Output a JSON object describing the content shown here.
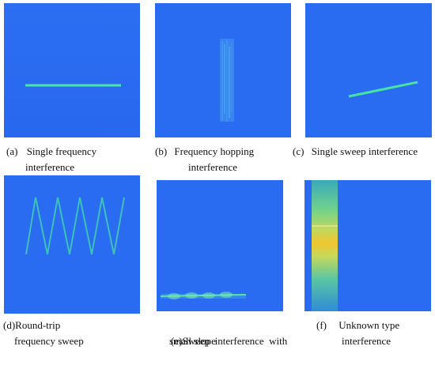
{
  "figure": {
    "panels": [
      {
        "tag": "(a)",
        "line1": "Single frequency",
        "line2": "interference"
      },
      {
        "tag": "(b)",
        "line1": "Frequency hopping",
        "line2": "interference"
      },
      {
        "tag": "(c)",
        "line1": "Single sweep interference",
        "line2": ""
      },
      {
        "tag": "(d)",
        "line1": "Round-trip",
        "line2": "frequency sweep"
      },
      {
        "tag": "(e)",
        "line1": "Sweep  interference  with",
        "line2": "small slope"
      },
      {
        "tag": "(f)",
        "line1": "Unknown type",
        "line2": "interference"
      }
    ],
    "colors": {
      "background_noise": "#2a6df2",
      "signal_green": "#3fe3a0",
      "signal_yellow": "#f2c230"
    }
  }
}
